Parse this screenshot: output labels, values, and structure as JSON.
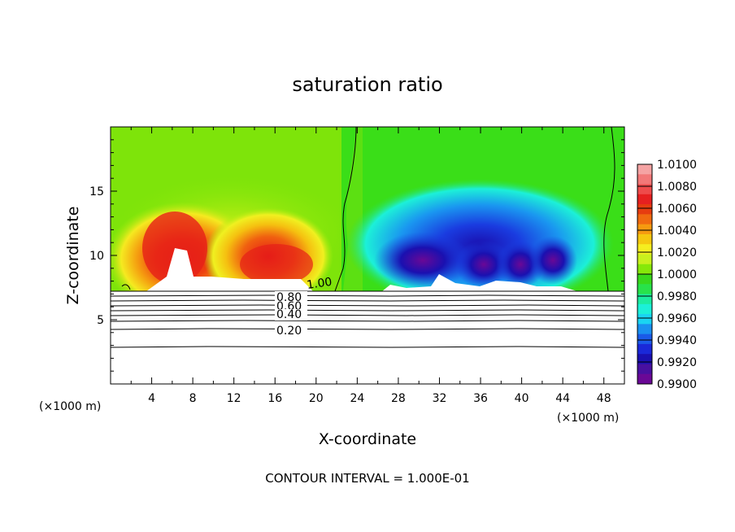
{
  "chart_data": {
    "type": "heatmap",
    "title": "saturation ratio",
    "xlabel": "X-coordinate",
    "ylabel": "Z-coordinate",
    "x_unit": "(×1000 m)",
    "x_unit_right": "(×1000 m)",
    "xlim": [
      0,
      50
    ],
    "ylim": [
      0,
      20
    ],
    "x_ticks": [
      "4",
      "8",
      "12",
      "16",
      "20",
      "24",
      "28",
      "32",
      "36",
      "40",
      "44",
      "48"
    ],
    "y_ticks": [
      "5",
      "10",
      "15"
    ],
    "surface_height": 7.3,
    "colorbar": {
      "levels": [
        "1.0100",
        "1.0080",
        "1.0060",
        "1.0040",
        "1.0020",
        "1.0000",
        "0.9980",
        "0.9960",
        "0.9940",
        "0.9920",
        "0.9900"
      ],
      "colors": [
        "#f5a3a3",
        "#f27878",
        "#ee4b4b",
        "#e62020",
        "#e63c10",
        "#f06a10",
        "#f59a10",
        "#f5c810",
        "#f5ee20",
        "#c9f01e",
        "#86e80a",
        "#38d81c",
        "#28e24a",
        "#1ceca0",
        "#1cf0d8",
        "#1ad4f2",
        "#1a90f0",
        "#1a5ae8",
        "#1a28d8",
        "#1a10b0",
        "#4810a0",
        "#6a0896"
      ]
    },
    "contour_interval": "CONTOUR INTERVAL = 1.000E-01",
    "contour_labels": [
      "0.80",
      "0.60",
      "0.40",
      "0.20",
      "1.00"
    ]
  }
}
